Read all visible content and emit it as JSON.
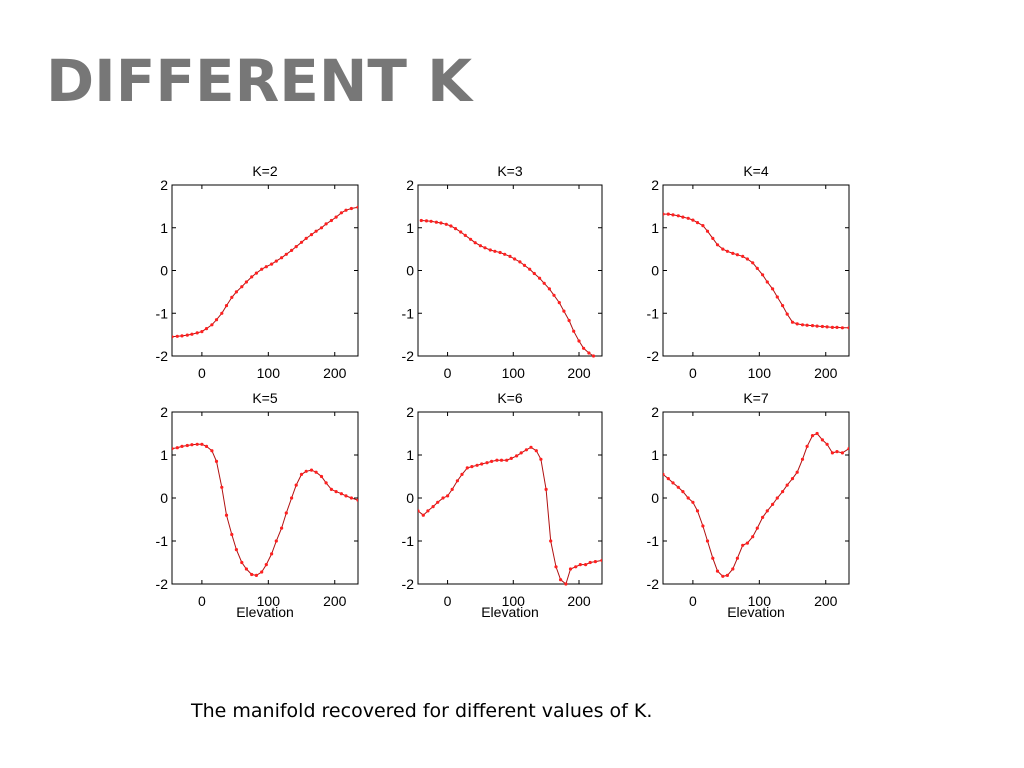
{
  "slide": {
    "title": "DIFFERENT K",
    "caption": "The manifold recovered for different values of K.",
    "title_color": "#777777",
    "line_color": "#b01010",
    "marker_color": "#ff2020"
  },
  "chart_data": [
    {
      "type": "line",
      "title": "K=2",
      "xlabel": "",
      "xlim": [
        -45,
        235
      ],
      "ylim": [
        -2,
        2
      ],
      "xticks": [
        0,
        100,
        200
      ],
      "yticks": [
        -2,
        -1,
        0,
        1,
        2
      ],
      "x": [
        -45,
        -37,
        -30,
        -22,
        -15,
        -7,
        0,
        7,
        15,
        22,
        30,
        37,
        45,
        52,
        60,
        67,
        75,
        82,
        90,
        97,
        105,
        112,
        120,
        127,
        135,
        142,
        150,
        157,
        165,
        172,
        180,
        187,
        195,
        202,
        210,
        217,
        225,
        235
      ],
      "y": [
        -1.55,
        -1.54,
        -1.53,
        -1.51,
        -1.49,
        -1.46,
        -1.43,
        -1.36,
        -1.27,
        -1.15,
        -1.0,
        -0.82,
        -0.63,
        -0.5,
        -0.38,
        -0.27,
        -0.15,
        -0.06,
        0.03,
        0.09,
        0.15,
        0.22,
        0.3,
        0.38,
        0.47,
        0.56,
        0.66,
        0.75,
        0.84,
        0.92,
        1.0,
        1.09,
        1.17,
        1.25,
        1.35,
        1.41,
        1.45,
        1.48
      ]
    },
    {
      "type": "line",
      "title": "K=3",
      "xlabel": "",
      "xlim": [
        -45,
        235
      ],
      "ylim": [
        -2,
        2
      ],
      "xticks": [
        0,
        100,
        200
      ],
      "yticks": [
        -2,
        -1,
        0,
        1,
        2
      ],
      "x": [
        -40,
        -32,
        -25,
        -17,
        -10,
        -2,
        5,
        12,
        20,
        27,
        35,
        42,
        50,
        57,
        65,
        72,
        80,
        87,
        95,
        102,
        110,
        117,
        125,
        132,
        140,
        147,
        155,
        162,
        170,
        177,
        185,
        192,
        200,
        207,
        215,
        222
      ],
      "y": [
        1.17,
        1.16,
        1.15,
        1.13,
        1.11,
        1.08,
        1.04,
        0.98,
        0.9,
        0.82,
        0.73,
        0.65,
        0.58,
        0.53,
        0.48,
        0.45,
        0.42,
        0.38,
        0.33,
        0.27,
        0.2,
        0.12,
        0.03,
        -0.07,
        -0.18,
        -0.3,
        -0.43,
        -0.58,
        -0.75,
        -0.95,
        -1.17,
        -1.42,
        -1.65,
        -1.82,
        -1.93,
        -2.0
      ]
    },
    {
      "type": "line",
      "title": "K=4",
      "xlabel": "",
      "xlim": [
        -45,
        235
      ],
      "ylim": [
        -2,
        2
      ],
      "xticks": [
        0,
        100,
        200
      ],
      "yticks": [
        -2,
        -1,
        0,
        1,
        2
      ],
      "x": [
        -45,
        -37,
        -30,
        -22,
        -15,
        -7,
        0,
        7,
        15,
        22,
        30,
        37,
        45,
        52,
        60,
        67,
        75,
        82,
        90,
        97,
        105,
        112,
        120,
        127,
        135,
        142,
        150,
        157,
        165,
        172,
        180,
        187,
        195,
        202,
        210,
        217,
        225,
        235
      ],
      "y": [
        1.32,
        1.32,
        1.3,
        1.28,
        1.25,
        1.22,
        1.18,
        1.12,
        1.05,
        0.92,
        0.75,
        0.6,
        0.5,
        0.45,
        0.4,
        0.37,
        0.33,
        0.27,
        0.18,
        0.05,
        -0.1,
        -0.27,
        -0.43,
        -0.62,
        -0.82,
        -1.02,
        -1.21,
        -1.25,
        -1.27,
        -1.28,
        -1.29,
        -1.3,
        -1.31,
        -1.32,
        -1.33,
        -1.33,
        -1.34,
        -1.34
      ]
    },
    {
      "type": "line",
      "title": "K=5",
      "xlabel": "Elevation",
      "xlim": [
        -45,
        235
      ],
      "ylim": [
        -2,
        2
      ],
      "xticks": [
        0,
        100,
        200
      ],
      "yticks": [
        -2,
        -1,
        0,
        1,
        2
      ],
      "x": [
        -45,
        -37,
        -30,
        -22,
        -15,
        -7,
        0,
        7,
        15,
        22,
        30,
        37,
        45,
        52,
        60,
        67,
        75,
        82,
        90,
        97,
        105,
        112,
        120,
        127,
        135,
        142,
        150,
        157,
        165,
        172,
        180,
        187,
        195,
        202,
        210,
        217,
        225,
        235
      ],
      "y": [
        1.15,
        1.17,
        1.2,
        1.22,
        1.24,
        1.25,
        1.25,
        1.2,
        1.1,
        0.85,
        0.25,
        -0.4,
        -0.85,
        -1.2,
        -1.5,
        -1.65,
        -1.78,
        -1.8,
        -1.72,
        -1.55,
        -1.3,
        -1.0,
        -0.7,
        -0.35,
        0.0,
        0.3,
        0.55,
        0.62,
        0.65,
        0.6,
        0.5,
        0.35,
        0.2,
        0.15,
        0.1,
        0.05,
        0.0,
        -0.05
      ]
    },
    {
      "type": "line",
      "title": "K=6",
      "xlabel": "Elevation",
      "xlim": [
        -45,
        235
      ],
      "ylim": [
        -2,
        2
      ],
      "xticks": [
        0,
        100,
        200
      ],
      "yticks": [
        -2,
        -1,
        0,
        1,
        2
      ],
      "x": [
        -45,
        -37,
        -30,
        -22,
        -15,
        -7,
        0,
        7,
        15,
        22,
        30,
        37,
        45,
        52,
        60,
        67,
        75,
        82,
        90,
        97,
        105,
        112,
        120,
        127,
        135,
        142,
        150,
        157,
        165,
        172,
        180,
        187,
        195,
        202,
        210,
        217,
        225,
        235
      ],
      "y": [
        -0.3,
        -0.4,
        -0.3,
        -0.2,
        -0.1,
        0.0,
        0.05,
        0.2,
        0.4,
        0.55,
        0.7,
        0.73,
        0.76,
        0.79,
        0.82,
        0.85,
        0.88,
        0.88,
        0.88,
        0.92,
        0.98,
        1.05,
        1.12,
        1.18,
        1.1,
        0.9,
        0.2,
        -1.0,
        -1.6,
        -1.9,
        -2.0,
        -1.65,
        -1.6,
        -1.55,
        -1.55,
        -1.5,
        -1.48,
        -1.45
      ]
    },
    {
      "type": "line",
      "title": "K=7",
      "xlabel": "Elevation",
      "xlim": [
        -45,
        235
      ],
      "ylim": [
        -2,
        2
      ],
      "xticks": [
        0,
        100,
        200
      ],
      "yticks": [
        -2,
        -1,
        0,
        1,
        2
      ],
      "x": [
        -45,
        -37,
        -30,
        -22,
        -15,
        -7,
        0,
        7,
        15,
        22,
        30,
        37,
        45,
        52,
        60,
        67,
        75,
        82,
        90,
        97,
        105,
        112,
        120,
        127,
        135,
        142,
        150,
        157,
        165,
        172,
        180,
        187,
        195,
        202,
        210,
        217,
        225,
        235
      ],
      "y": [
        0.55,
        0.45,
        0.35,
        0.25,
        0.15,
        0.0,
        -0.1,
        -0.3,
        -0.65,
        -1.0,
        -1.4,
        -1.7,
        -1.82,
        -1.8,
        -1.65,
        -1.4,
        -1.1,
        -1.05,
        -0.9,
        -0.7,
        -0.45,
        -0.3,
        -0.15,
        0.0,
        0.15,
        0.3,
        0.45,
        0.6,
        0.9,
        1.2,
        1.45,
        1.5,
        1.35,
        1.25,
        1.05,
        1.08,
        1.05,
        1.15
      ]
    }
  ]
}
